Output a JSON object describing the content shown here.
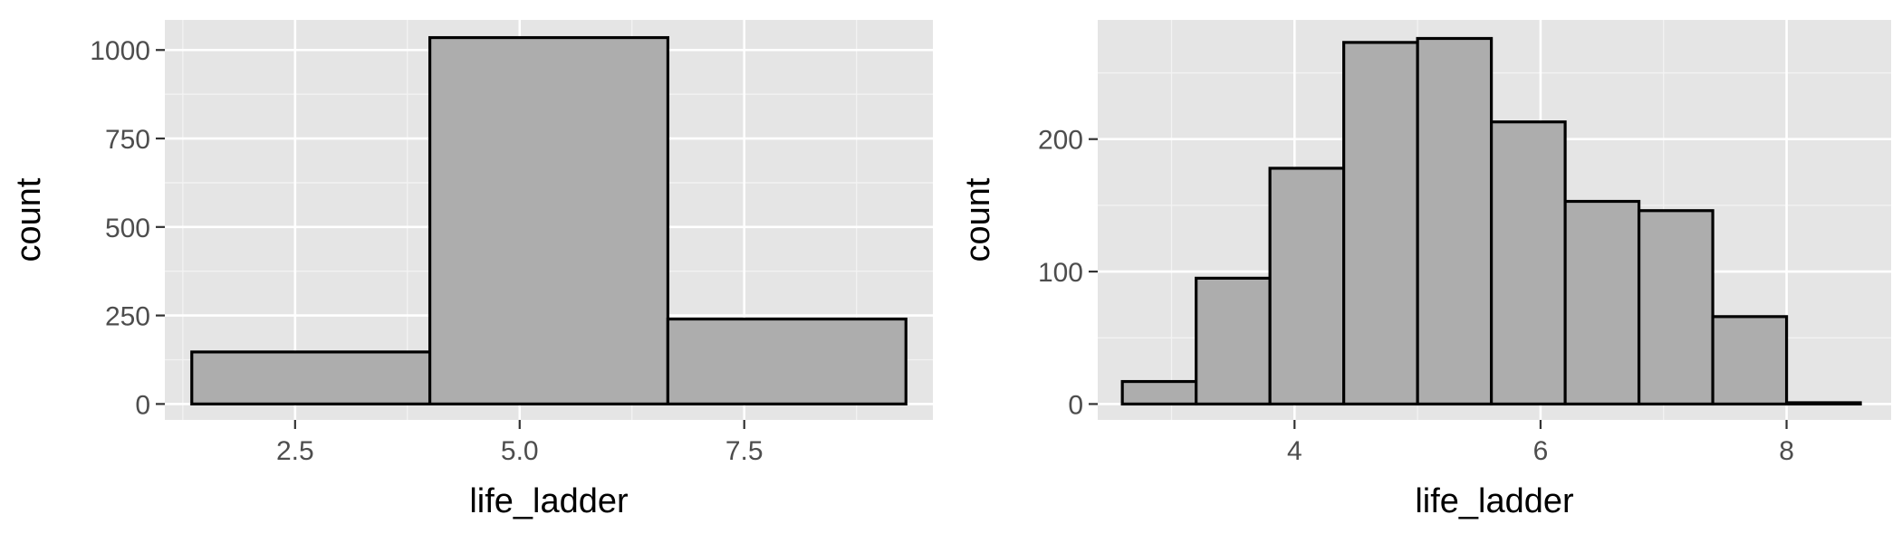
{
  "chart_data": [
    {
      "type": "bar",
      "title": "",
      "xlabel": "life_ladder",
      "ylabel": "count",
      "xlim": [
        1.05,
        9.6
      ],
      "ylim": [
        -45,
        1085
      ],
      "x_ticks": [
        2.5,
        5.0,
        7.5
      ],
      "x_tick_labels": [
        "2.5",
        "5.0",
        "7.5"
      ],
      "y_ticks": [
        0,
        250,
        500,
        750,
        1000
      ],
      "y_tick_labels": [
        "0",
        "250",
        "500",
        "750",
        "1000"
      ],
      "grid": true,
      "bins": [
        {
          "x0": 1.35,
          "x1": 4.0,
          "count": 147
        },
        {
          "x0": 4.0,
          "x1": 6.65,
          "count": 1035
        },
        {
          "x0": 6.65,
          "x1": 9.3,
          "count": 240
        }
      ]
    },
    {
      "type": "bar",
      "title": "",
      "xlabel": "life_ladder",
      "ylabel": "count",
      "xlim": [
        2.4,
        8.85
      ],
      "ylim": [
        -12,
        290
      ],
      "x_ticks": [
        4,
        6,
        8
      ],
      "x_tick_labels": [
        "4",
        "6",
        "8"
      ],
      "y_ticks": [
        0,
        100,
        200
      ],
      "y_tick_labels": [
        "0",
        "100",
        "200"
      ],
      "grid": true,
      "bins": [
        {
          "x0": 2.6,
          "x1": 3.2,
          "count": 17
        },
        {
          "x0": 3.2,
          "x1": 3.8,
          "count": 95
        },
        {
          "x0": 3.8,
          "x1": 4.4,
          "count": 178
        },
        {
          "x0": 4.4,
          "x1": 5.0,
          "count": 273
        },
        {
          "x0": 5.0,
          "x1": 5.6,
          "count": 276
        },
        {
          "x0": 5.6,
          "x1": 6.2,
          "count": 213
        },
        {
          "x0": 6.2,
          "x1": 6.8,
          "count": 153
        },
        {
          "x0": 6.8,
          "x1": 7.4,
          "count": 146
        },
        {
          "x0": 7.4,
          "x1": 8.0,
          "count": 66
        },
        {
          "x0": 8.0,
          "x1": 8.6,
          "count": 1
        }
      ]
    }
  ]
}
